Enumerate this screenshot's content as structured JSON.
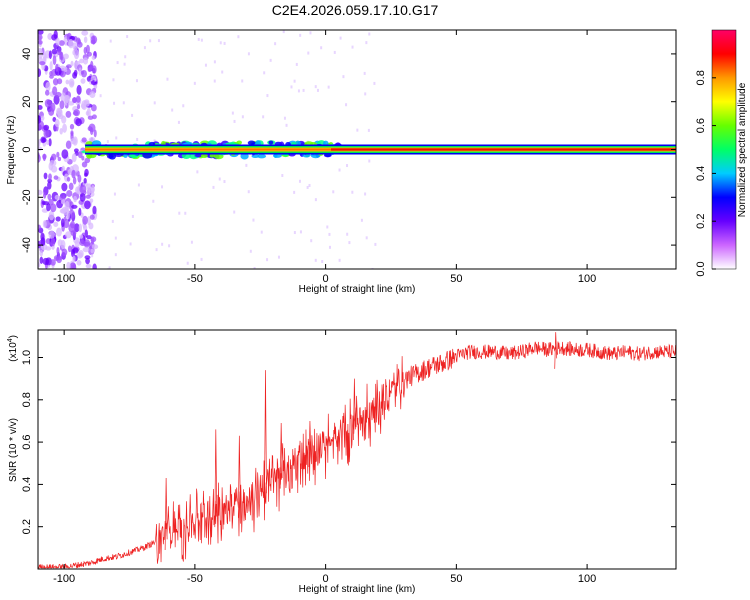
{
  "page_title": "C2E4.2026.059.17.10.G17",
  "chart_data": [
    {
      "type": "heatmap",
      "xlabel": "Height of straight line (km)",
      "ylabel": "Frequency (Hz)",
      "xlim": [
        -110,
        134
      ],
      "ylim": [
        -50,
        50
      ],
      "x_ticks": [
        "-100",
        "-50",
        "0",
        "50",
        "100"
      ],
      "y_ticks": [
        "-40",
        "-20",
        "0",
        "20",
        "40"
      ],
      "colorbar": {
        "label": "Normalized spectral amplitude",
        "range": [
          0,
          1
        ],
        "ticks": [
          "0.0",
          "0.2",
          "0.4",
          "0.6",
          "0.8"
        ],
        "colors": [
          "#ffffff",
          "#cc66ff",
          "#6600ff",
          "#0000ff",
          "#00ccff",
          "#00ff66",
          "#66ff00",
          "#ffff00",
          "#ff9900",
          "#ff0000",
          "#ff0066"
        ]
      },
      "ridge": {
        "frequency_hz": 0,
        "start_km": -92,
        "end_km": 134,
        "peak_amplitude": 1.0
      },
      "noisy_region_km": [
        -110,
        -92
      ]
    },
    {
      "type": "line",
      "xlabel": "Height of straight line (km)",
      "ylabel": "SNR (10 * v/v)",
      "y_exponent_label": "(x10",
      "y_exponent_power": "4",
      "y_exponent_close": ")",
      "xlim": [
        -110,
        134
      ],
      "ylim": [
        0,
        1.13
      ],
      "x_ticks": [
        "-100",
        "-50",
        "0",
        "50",
        "100"
      ],
      "y_ticks": [
        "0.2",
        "0.4",
        "0.6",
        "0.8",
        "1.0"
      ],
      "line_color": "#ee2222",
      "series": [
        {
          "x": [
            -110,
            -100,
            -95,
            -90,
            -85,
            -80,
            -75,
            -70,
            -65,
            -62,
            -60,
            -55,
            -50,
            -45,
            -40,
            -35,
            -30,
            -25,
            -20,
            -15,
            -10,
            -5,
            0,
            5,
            10,
            15,
            20,
            25,
            30,
            35,
            40,
            45,
            50,
            55,
            60,
            65,
            70,
            75,
            80,
            85,
            90,
            95,
            100,
            105,
            110,
            115,
            120,
            125,
            130,
            134
          ],
          "y": [
            0.01,
            0.01,
            0.02,
            0.03,
            0.05,
            0.06,
            0.08,
            0.1,
            0.13,
            0.18,
            0.2,
            0.23,
            0.26,
            0.28,
            0.31,
            0.33,
            0.36,
            0.38,
            0.45,
            0.5,
            0.55,
            0.59,
            0.62,
            0.66,
            0.7,
            0.75,
            0.8,
            0.85,
            0.9,
            0.93,
            0.96,
            0.98,
            1.01,
            1.03,
            1.03,
            1.03,
            1.02,
            1.03,
            1.05,
            1.04,
            1.05,
            1.04,
            1.04,
            1.03,
            1.02,
            1.03,
            1.02,
            1.03,
            1.03,
            1.03
          ],
          "spikes": [
            {
              "x": -61,
              "y": 0.43
            },
            {
              "x": -42,
              "y": 0.66
            },
            {
              "x": -33,
              "y": 0.63
            },
            {
              "x": -23,
              "y": 0.94
            },
            {
              "x": -17,
              "y": 0.69
            },
            {
              "x": -6,
              "y": 0.7
            },
            {
              "x": 11,
              "y": 0.9
            },
            {
              "x": 88,
              "y": 1.12
            }
          ]
        }
      ]
    }
  ]
}
